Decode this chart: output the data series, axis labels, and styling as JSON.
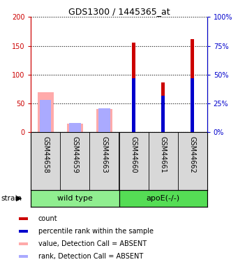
{
  "title": "GDS1300 / 1445365_at",
  "samples": [
    "GSM44658",
    "GSM44659",
    "GSM44663",
    "GSM44660",
    "GSM44661",
    "GSM44662"
  ],
  "group_labels": [
    "wild type",
    "apoE(-/-)"
  ],
  "ylim_left": [
    0,
    200
  ],
  "yticks_left": [
    0,
    50,
    100,
    150,
    200
  ],
  "ytick_labels_left": [
    "0",
    "50",
    "100",
    "150",
    "200"
  ],
  "yticks_right": [
    0,
    25,
    50,
    75,
    100
  ],
  "ytick_labels_right": [
    "0%",
    "25%",
    "50%",
    "75%",
    "100%"
  ],
  "count_values": [
    0,
    0,
    0,
    155,
    86,
    162
  ],
  "rank_pct": [
    0,
    0,
    0,
    47,
    32,
    47
  ],
  "value_absent": [
    69,
    15,
    41,
    0,
    0,
    0
  ],
  "rank_absent_pct": [
    28,
    8,
    21,
    0,
    0,
    0
  ],
  "count_color": "#cc0000",
  "rank_color": "#0000cc",
  "value_absent_color": "#ffaaaa",
  "rank_absent_color": "#aaaaff",
  "left_axis_color": "#cc0000",
  "right_axis_color": "#0000cc",
  "bg_color": "#d8d8d8",
  "group_color_wt": "#90ee90",
  "group_color_apoe": "#55dd55",
  "legend_items": [
    {
      "label": "count",
      "color": "#cc0000"
    },
    {
      "label": "percentile rank within the sample",
      "color": "#0000cc"
    },
    {
      "label": "value, Detection Call = ABSENT",
      "color": "#ffaaaa"
    },
    {
      "label": "rank, Detection Call = ABSENT",
      "color": "#aaaaff"
    }
  ]
}
